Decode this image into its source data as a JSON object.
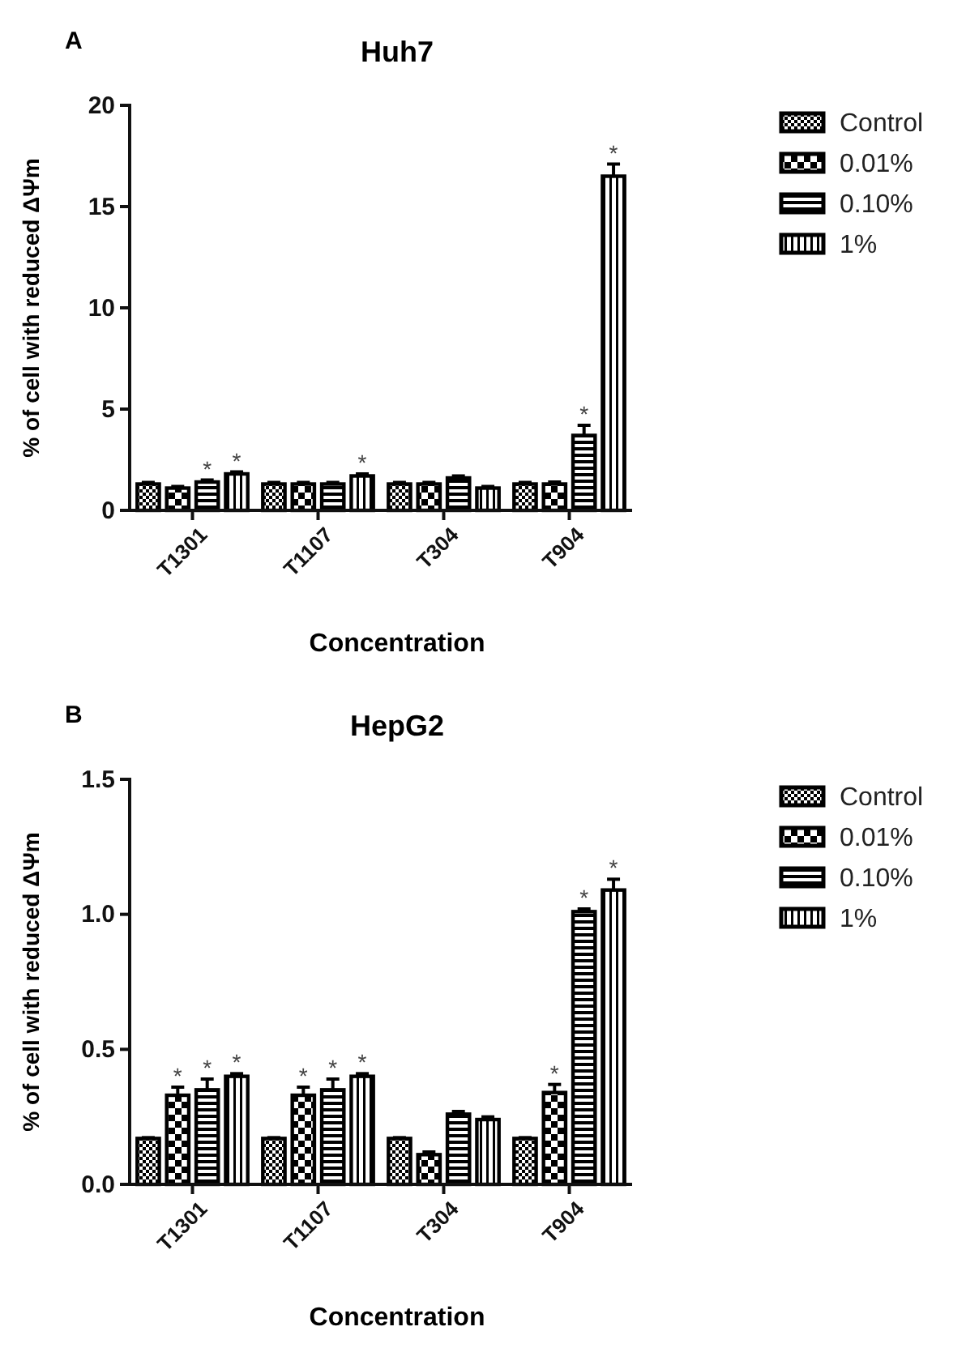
{
  "chart_data": [
    {
      "type": "bar",
      "title": "Huh7",
      "xlabel": "Concentration",
      "ylabel": "% of cell with reduced ΔΨm",
      "annotations": [
        "A"
      ],
      "categories": [
        "T1301",
        "T1107",
        "T304",
        "T904"
      ],
      "ylim": [
        0,
        20
      ],
      "yticks": [
        0,
        5,
        10,
        15,
        20
      ],
      "legend": "right",
      "grid": false,
      "series": [
        {
          "name": "Control",
          "color": "#000000",
          "values": [
            1.3,
            1.3,
            1.3,
            1.3
          ],
          "errors": [
            0.08,
            0.08,
            0.08,
            0.08
          ],
          "value_labels": [
            null,
            null,
            null,
            null
          ]
        },
        {
          "name": "0.01%",
          "color": "#000000",
          "values": [
            1.1,
            1.3,
            1.3,
            1.3
          ],
          "errors": [
            0.08,
            0.08,
            0.08,
            0.1
          ],
          "value_labels": [
            null,
            null,
            null,
            null
          ]
        },
        {
          "name": "0.10%",
          "color": "#000000",
          "values": [
            1.4,
            1.3,
            1.6,
            3.7
          ],
          "errors": [
            0.1,
            0.08,
            0.1,
            0.5
          ],
          "value_labels": [
            "*",
            null,
            null,
            "*"
          ]
        },
        {
          "name": "1%",
          "color": "#000000",
          "values": [
            1.8,
            1.7,
            1.1,
            16.5
          ],
          "errors": [
            0.1,
            0.1,
            0.08,
            0.6
          ],
          "value_labels": [
            "*",
            "*",
            null,
            "*"
          ]
        }
      ]
    },
    {
      "type": "bar",
      "title": "HepG2",
      "xlabel": "Concentration",
      "ylabel": "% of cell with reduced ΔΨm",
      "annotations": [
        "B"
      ],
      "categories": [
        "T1301",
        "T1107",
        "T304",
        "T904"
      ],
      "ylim": [
        0,
        1.5
      ],
      "yticks": [
        {
          "value": 0,
          "label": "0.0"
        },
        0.5,
        {
          "value": 1,
          "label": "1.0"
        },
        1.5
      ],
      "legend": "right",
      "grid": false,
      "series": [
        {
          "name": "Control",
          "color": "#000000",
          "values": [
            0.17,
            0.17,
            0.17,
            0.17
          ],
          "errors": [
            0.003,
            0.003,
            0.003,
            0.003
          ],
          "value_labels": [
            null,
            null,
            null,
            null
          ]
        },
        {
          "name": "0.01%",
          "color": "#000000",
          "values": [
            0.33,
            0.33,
            0.11,
            0.34
          ],
          "errors": [
            0.03,
            0.03,
            0.01,
            0.03
          ],
          "value_labels": [
            "*",
            "*",
            null,
            "*"
          ]
        },
        {
          "name": "0.10%",
          "color": "#000000",
          "values": [
            0.35,
            0.35,
            0.26,
            1.01
          ],
          "errors": [
            0.04,
            0.04,
            0.01,
            0.01
          ],
          "value_labels": [
            "*",
            "*",
            null,
            "*"
          ]
        },
        {
          "name": "1%",
          "color": "#000000",
          "values": [
            0.4,
            0.4,
            0.24,
            1.09
          ],
          "errors": [
            0.01,
            0.01,
            0.01,
            0.04
          ],
          "value_labels": [
            "*",
            "*",
            null,
            "*"
          ]
        }
      ]
    }
  ]
}
